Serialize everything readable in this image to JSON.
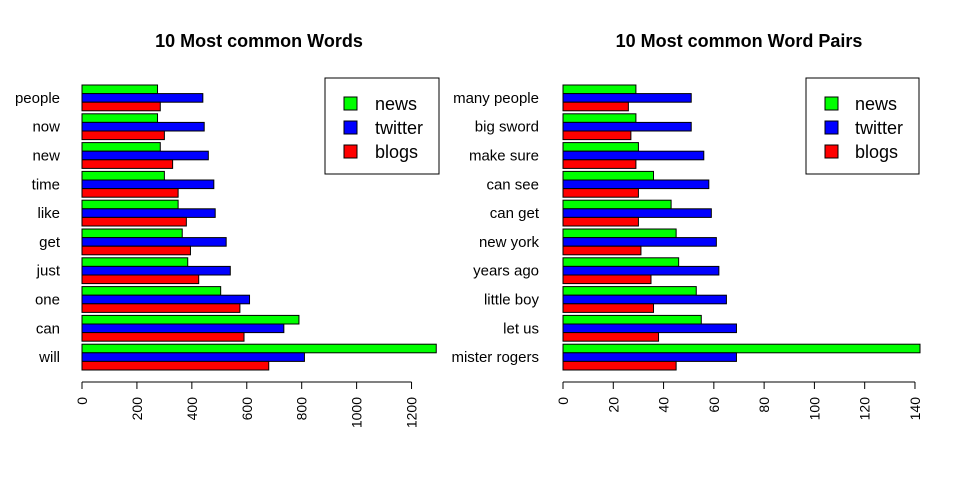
{
  "colors": {
    "news": "#00ff00",
    "twitter": "#0000ff",
    "blogs": "#ff0000"
  },
  "chart_data": [
    {
      "type": "bar",
      "orientation": "horizontal",
      "title": "10 Most common Words",
      "categories": [
        "will",
        "can",
        "one",
        "just",
        "get",
        "like",
        "time",
        "new",
        "now",
        "people"
      ],
      "series": [
        {
          "name": "news",
          "values": [
            1290,
            790,
            505,
            385,
            365,
            350,
            300,
            285,
            275,
            275
          ]
        },
        {
          "name": "twitter",
          "values": [
            810,
            735,
            610,
            540,
            525,
            485,
            480,
            460,
            445,
            440
          ]
        },
        {
          "name": "blogs",
          "values": [
            680,
            590,
            575,
            425,
            395,
            380,
            350,
            330,
            300,
            285
          ]
        }
      ],
      "xlim": [
        0,
        1300
      ],
      "xticks": [
        "0",
        "200",
        "400",
        "600",
        "800",
        "1000",
        "1200"
      ],
      "legend": "top-right",
      "grid": false
    },
    {
      "type": "bar",
      "orientation": "horizontal",
      "title": "10 Most common Word Pairs",
      "categories": [
        "mister rogers",
        "let us",
        "little boy",
        "years ago",
        "new york",
        "can get",
        "can see",
        "make sure",
        "big sword",
        "many people"
      ],
      "series": [
        {
          "name": "news",
          "values": [
            142,
            55,
            53,
            46,
            45,
            43,
            36,
            30,
            29,
            29
          ]
        },
        {
          "name": "twitter",
          "values": [
            69,
            69,
            65,
            62,
            61,
            59,
            58,
            56,
            51,
            51
          ]
        },
        {
          "name": "blogs",
          "values": [
            45,
            38,
            36,
            35,
            31,
            30,
            30,
            29,
            27,
            26
          ]
        }
      ],
      "xlim": [
        0,
        142
      ],
      "xticks": [
        "0",
        "20",
        "40",
        "60",
        "80",
        "100",
        "120",
        "140"
      ],
      "legend": "top-right",
      "grid": false
    }
  ]
}
